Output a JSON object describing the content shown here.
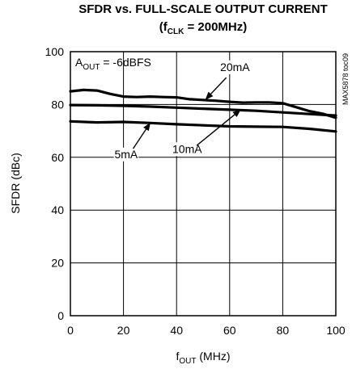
{
  "chart_data": {
    "type": "line",
    "title_line1": "SFDR vs. FULL-SCALE OUTPUT CURRENT",
    "title_line2_pre": "(f",
    "title_line2_sub": "CLK",
    "title_line2_post": " = 200MHz)",
    "xlabel_pre": "f",
    "xlabel_sub": "OUT",
    "xlabel_post": " (MHz)",
    "ylabel": "SFDR (dBc)",
    "xlim": [
      0,
      100
    ],
    "ylim": [
      0,
      100
    ],
    "x_ticks": [
      "0",
      "20",
      "40",
      "60",
      "80",
      "100"
    ],
    "y_ticks": [
      "0",
      "20",
      "40",
      "60",
      "80",
      "100"
    ],
    "grid": true,
    "annotation_pre": "A",
    "annotation_sub": "OUT",
    "annotation_post": " = -6dBFS",
    "watermark": "MAX5878 toc09",
    "series": [
      {
        "name": "20mA",
        "x": [
          0,
          5,
          10,
          15,
          20,
          25,
          30,
          35,
          40,
          45,
          50,
          55,
          60,
          65,
          70,
          75,
          80,
          85,
          90,
          95,
          100
        ],
        "values": [
          85,
          85.5,
          85.3,
          84,
          83,
          82.8,
          83,
          82.8,
          82.7,
          82,
          81.7,
          81.4,
          81,
          80.7,
          80.8,
          80.8,
          80.5,
          79,
          77.5,
          76.5,
          75
        ]
      },
      {
        "name": "10mA",
        "x": [
          0,
          10,
          20,
          30,
          40,
          50,
          60,
          70,
          80,
          90,
          100
        ],
        "values": [
          79.8,
          79.7,
          79.5,
          79.2,
          78.8,
          78.4,
          78,
          77.6,
          77,
          76.4,
          75.8
        ]
      },
      {
        "name": "5mA",
        "x": [
          0,
          10,
          20,
          30,
          40,
          50,
          60,
          70,
          80,
          90,
          100
        ],
        "values": [
          73.6,
          73.2,
          73.4,
          73,
          72.5,
          72.1,
          71.7,
          71.6,
          71.5,
          70.8,
          69.8
        ]
      }
    ],
    "callouts": [
      {
        "label": "20mA",
        "label_x": 62,
        "label_y": 93,
        "arrow_x": 51,
        "arrow_y": 82
      },
      {
        "label": "10mA",
        "label_x": 44,
        "label_y": 62,
        "arrow_x": 64,
        "arrow_y": 77.9
      },
      {
        "label": "5mA",
        "label_x": 21,
        "label_y": 60,
        "arrow_x": 30,
        "arrow_y": 72.9
      }
    ]
  }
}
